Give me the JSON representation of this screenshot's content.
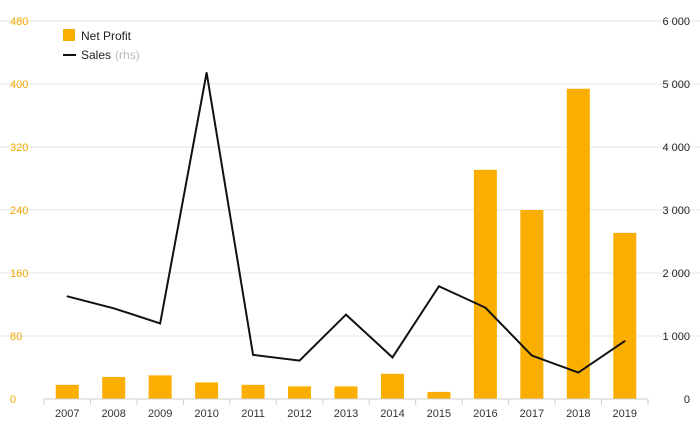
{
  "chart_data": {
    "type": "bar",
    "categories": [
      "2007",
      "2008",
      "2009",
      "2010",
      "2011",
      "2012",
      "2013",
      "2014",
      "2015",
      "2016",
      "2017",
      "2018",
      "2019"
    ],
    "series": [
      {
        "name": "Net Profit",
        "type": "bar",
        "axis": "left",
        "color": "#f9ae00",
        "values": [
          18,
          28,
          30,
          21,
          18,
          16,
          16,
          32,
          9,
          291,
          240,
          394,
          211
        ]
      },
      {
        "name": "Sales",
        "name_suffix": "(rhs)",
        "type": "line",
        "axis": "right",
        "color": "#111111",
        "values": [
          1630,
          1440,
          1200,
          5180,
          700,
          610,
          1340,
          660,
          1790,
          1450,
          690,
          420,
          920
        ]
      }
    ],
    "y_left": {
      "min": 0,
      "max": 480,
      "ticks": [
        "0",
        "80",
        "160",
        "240",
        "320",
        "400",
        "480"
      ]
    },
    "y_right": {
      "min": 0,
      "max": 6000,
      "ticks": [
        "0",
        "1 000",
        "2 000",
        "3 000",
        "4 000",
        "5 000",
        "6 000"
      ]
    },
    "grid": true,
    "legend": "top-left"
  }
}
